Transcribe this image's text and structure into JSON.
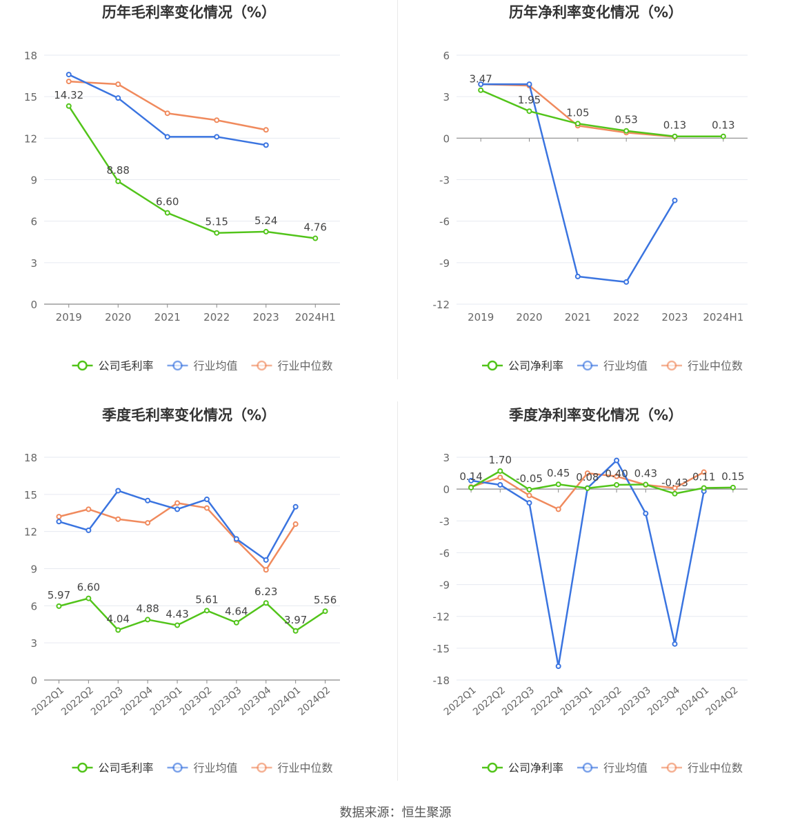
{
  "chart_data": [
    {
      "type": "line",
      "title": "历年毛利率变化情况（%）",
      "categories": [
        "2019",
        "2020",
        "2021",
        "2022",
        "2023",
        "2024H1"
      ],
      "ylim": [
        0,
        18
      ],
      "yticks": [
        0,
        3,
        6,
        9,
        12,
        15,
        18
      ],
      "grid": true,
      "legend_position": "bottom",
      "series": [
        {
          "name": "公司毛利率",
          "color": "#52c41a",
          "values": [
            14.32,
            8.88,
            6.6,
            5.15,
            5.24,
            4.76
          ],
          "labels": [
            "14.32",
            "8.88",
            "6.60",
            "5.15",
            "5.24",
            "4.76"
          ]
        },
        {
          "name": "行业均值",
          "color": "#3a74e0",
          "values": [
            16.6,
            14.9,
            12.1,
            12.1,
            11.5,
            null
          ]
        },
        {
          "name": "行业中位数",
          "color": "#f08a5d",
          "values": [
            16.1,
            15.9,
            13.8,
            13.3,
            12.6,
            null
          ]
        }
      ]
    },
    {
      "type": "line",
      "title": "历年净利率变化情况（%）",
      "categories": [
        "2019",
        "2020",
        "2021",
        "2022",
        "2023",
        "2024H1"
      ],
      "ylim": [
        -12,
        6
      ],
      "yticks": [
        -12,
        -9,
        -6,
        -3,
        0,
        3,
        6
      ],
      "grid": true,
      "legend_position": "bottom",
      "series": [
        {
          "name": "公司净利率",
          "color": "#52c41a",
          "values": [
            3.47,
            1.95,
            1.05,
            0.53,
            0.13,
            0.13
          ],
          "labels": [
            "3.47",
            "1.95",
            "1.05",
            "0.53",
            "0.13",
            "0.13"
          ]
        },
        {
          "name": "行业均值",
          "color": "#3a74e0",
          "values": [
            3.9,
            3.9,
            -10.0,
            -10.4,
            -4.5,
            null
          ]
        },
        {
          "name": "行业中位数",
          "color": "#f08a5d",
          "values": [
            3.9,
            3.8,
            0.9,
            0.4,
            0.1,
            null
          ]
        }
      ]
    },
    {
      "type": "line",
      "title": "季度毛利率变化情况（%）",
      "categories": [
        "2022Q1",
        "2022Q2",
        "2022Q3",
        "2022Q4",
        "2023Q1",
        "2023Q2",
        "2023Q3",
        "2023Q4",
        "2024Q1",
        "2024Q2"
      ],
      "ylim": [
        0,
        18
      ],
      "yticks": [
        0,
        3,
        6,
        9,
        12,
        15,
        18
      ],
      "grid": true,
      "legend_position": "bottom",
      "series": [
        {
          "name": "公司毛利率",
          "color": "#52c41a",
          "values": [
            5.97,
            6.6,
            4.04,
            4.88,
            4.43,
            5.61,
            4.64,
            6.23,
            3.97,
            5.56
          ],
          "labels": [
            "5.97",
            "6.60",
            "4.04",
            "4.88",
            "4.43",
            "5.61",
            "4.64",
            "6.23",
            "3.97",
            "5.56"
          ]
        },
        {
          "name": "行业均值",
          "color": "#3a74e0",
          "values": [
            12.8,
            12.1,
            15.3,
            14.5,
            13.8,
            14.6,
            11.4,
            9.7,
            14.0,
            null
          ]
        },
        {
          "name": "行业中位数",
          "color": "#f08a5d",
          "values": [
            13.2,
            13.8,
            13.0,
            12.7,
            14.3,
            13.9,
            11.3,
            8.9,
            12.6,
            null
          ]
        }
      ]
    },
    {
      "type": "line",
      "title": "季度净利率变化情况（%）",
      "categories": [
        "2022Q1",
        "2022Q2",
        "2022Q3",
        "2022Q4",
        "2023Q1",
        "2023Q2",
        "2023Q3",
        "2023Q4",
        "2024Q1",
        "2024Q2"
      ],
      "ylim": [
        -18,
        3
      ],
      "yticks": [
        -18,
        -15,
        -12,
        -9,
        -6,
        -3,
        0,
        3
      ],
      "grid": true,
      "legend_position": "bottom",
      "series": [
        {
          "name": "公司净利率",
          "color": "#52c41a",
          "values": [
            0.14,
            1.7,
            -0.05,
            0.45,
            0.08,
            0.4,
            0.43,
            -0.43,
            0.11,
            0.15
          ],
          "labels": [
            "0.14",
            "1.70",
            "-0.05",
            "0.45",
            "0.08",
            "0.40",
            "0.43",
            "-0.43",
            "0.11",
            "0.15"
          ]
        },
        {
          "name": "行业均值",
          "color": "#3a74e0",
          "values": [
            0.8,
            0.4,
            -1.3,
            -16.7,
            0.1,
            2.7,
            -2.3,
            -14.6,
            -0.2,
            null
          ]
        },
        {
          "name": "行业中位数",
          "color": "#f08a5d",
          "values": [
            0.2,
            1.1,
            -0.6,
            -1.9,
            1.5,
            1.2,
            0.4,
            0.1,
            1.6,
            null
          ]
        }
      ]
    }
  ],
  "source": "数据来源：恒生聚源"
}
